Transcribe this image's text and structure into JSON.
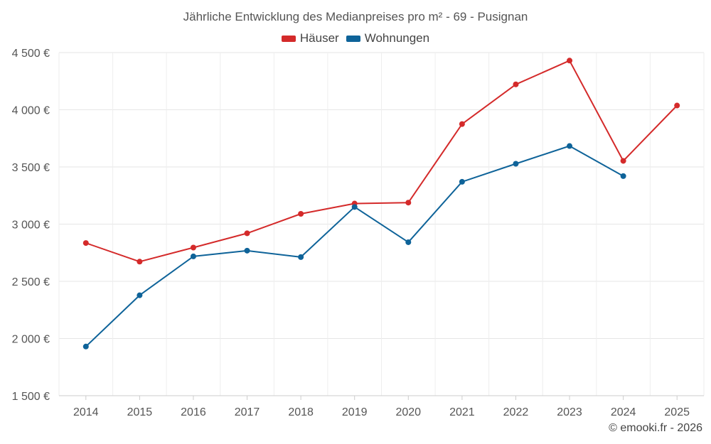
{
  "chart_data": {
    "type": "line",
    "title": "Jährliche Entwicklung des Medianpreises pro m² - 69 - Pusignan",
    "xlabel": "",
    "ylabel": "",
    "categories": [
      "2014",
      "2015",
      "2016",
      "2017",
      "2018",
      "2019",
      "2020",
      "2021",
      "2022",
      "2023",
      "2024",
      "2025"
    ],
    "ylim": [
      1500,
      4500
    ],
    "yticks": [
      1500,
      2000,
      2500,
      3000,
      3500,
      4000,
      4500
    ],
    "ytick_labels": [
      "1 500 €",
      "2 000 €",
      "2 500 €",
      "3 000 €",
      "3 500 €",
      "4 000 €",
      "4 500 €"
    ],
    "grid": true,
    "legend_position": "top-center",
    "series": [
      {
        "name": "Häuser",
        "color": "#d42a2a",
        "values": [
          2835,
          2672,
          2795,
          2920,
          3090,
          3180,
          3188,
          3875,
          4222,
          4430,
          3553,
          4037
        ]
      },
      {
        "name": "Wohnungen",
        "color": "#0e6399",
        "values": [
          1930,
          2378,
          2718,
          2768,
          2712,
          3150,
          2842,
          3370,
          3528,
          3683,
          3420,
          null
        ]
      }
    ]
  },
  "credit": "© emooki.fr - 2026"
}
